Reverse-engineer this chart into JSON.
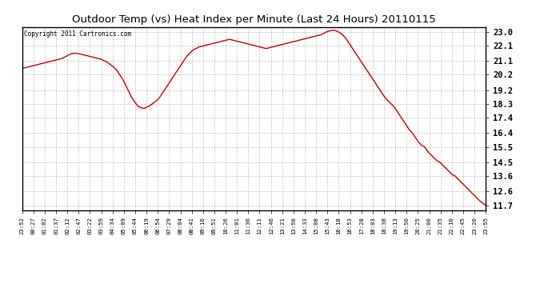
{
  "title": "Outdoor Temp (vs) Heat Index per Minute (Last 24 Hours) 20110115",
  "copyright": "Copyright 2011 Cartronics.com",
  "line_color": "#cc0000",
  "background_color": "#ffffff",
  "grid_color": "#b0b0b0",
  "yticks": [
    11.7,
    12.6,
    13.6,
    14.5,
    15.5,
    16.4,
    17.4,
    18.3,
    19.2,
    20.2,
    21.1,
    22.1,
    23.0
  ],
  "ylim": [
    11.4,
    23.3
  ],
  "xtick_labels": [
    "23:52",
    "00:27",
    "01:02",
    "01:37",
    "02:12",
    "02:47",
    "03:22",
    "03:59",
    "04:34",
    "05:09",
    "05:44",
    "06:19",
    "06:54",
    "07:29",
    "08:04",
    "08:41",
    "09:16",
    "09:51",
    "10:26",
    "11:01",
    "11:36",
    "12:11",
    "12:46",
    "13:21",
    "13:58",
    "14:33",
    "15:08",
    "15:43",
    "16:18",
    "16:53",
    "17:28",
    "18:03",
    "18:38",
    "19:13",
    "19:50",
    "20:25",
    "21:00",
    "21:35",
    "22:10",
    "22:45",
    "23:20",
    "23:55"
  ],
  "data_points": [
    20.6,
    20.65,
    20.7,
    20.75,
    20.8,
    20.85,
    20.9,
    20.95,
    21.0,
    21.05,
    21.1,
    21.15,
    21.2,
    21.25,
    21.35,
    21.45,
    21.55,
    21.6,
    21.58,
    21.55,
    21.5,
    21.45,
    21.4,
    21.35,
    21.3,
    21.25,
    21.2,
    21.1,
    21.0,
    20.85,
    20.7,
    20.5,
    20.2,
    19.9,
    19.5,
    19.1,
    18.7,
    18.4,
    18.15,
    18.05,
    18.0,
    18.1,
    18.2,
    18.35,
    18.5,
    18.7,
    19.0,
    19.3,
    19.6,
    19.9,
    20.2,
    20.5,
    20.8,
    21.1,
    21.4,
    21.6,
    21.8,
    21.9,
    22.0,
    22.05,
    22.1,
    22.15,
    22.2,
    22.25,
    22.3,
    22.35,
    22.4,
    22.45,
    22.5,
    22.45,
    22.4,
    22.35,
    22.3,
    22.25,
    22.2,
    22.15,
    22.1,
    22.05,
    22.0,
    21.95,
    21.9,
    21.95,
    22.0,
    22.05,
    22.1,
    22.15,
    22.2,
    22.25,
    22.3,
    22.35,
    22.4,
    22.45,
    22.5,
    22.55,
    22.6,
    22.65,
    22.7,
    22.75,
    22.8,
    22.9,
    23.0,
    23.05,
    23.1,
    23.05,
    22.95,
    22.8,
    22.6,
    22.3,
    22.0,
    21.7,
    21.4,
    21.1,
    20.8,
    20.5,
    20.2,
    19.9,
    19.6,
    19.3,
    19.0,
    18.7,
    18.5,
    18.3,
    18.1,
    17.8,
    17.5,
    17.2,
    16.9,
    16.6,
    16.4,
    16.1,
    15.8,
    15.6,
    15.5,
    15.2,
    15.0,
    14.8,
    14.6,
    14.5,
    14.3,
    14.1,
    13.9,
    13.7,
    13.6,
    13.4,
    13.2,
    13.0,
    12.8,
    12.6,
    12.4,
    12.2,
    12.0,
    11.85,
    11.7
  ]
}
